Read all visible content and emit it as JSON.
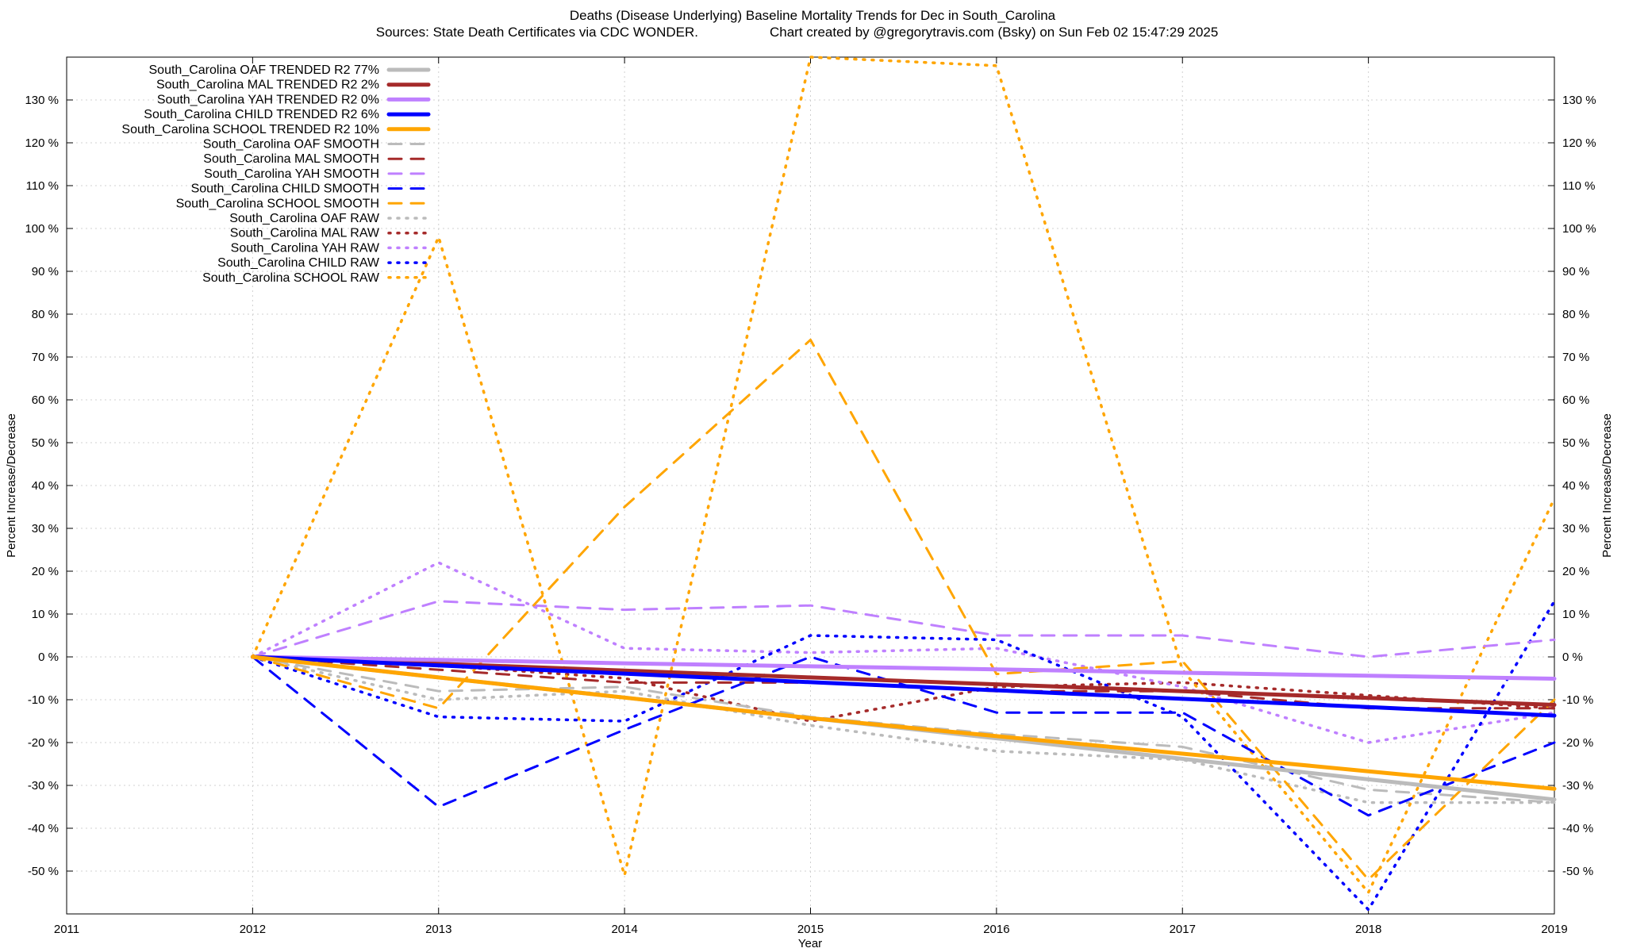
{
  "chart_data": {
    "type": "line",
    "title": "Deaths (Disease Underlying)  Baseline Mortality Trends for Dec in South_Carolina",
    "subtitle_left": "Sources: State Death Certificates via CDC WONDER.",
    "subtitle_right": "Chart created by @gregorytravis.com (Bsky) on Sun Feb 02 15:47:29 2025",
    "xlabel": "Year",
    "ylabel_left": "Percent Increase/Decrease",
    "ylabel_right": "Percent Increase/Decrease",
    "xlim": [
      2011,
      2019
    ],
    "ylim": [
      -60,
      140
    ],
    "x_ticks": [
      "2011",
      "2012",
      "2013",
      "2014",
      "2015",
      "2016",
      "2017",
      "2018",
      "2019"
    ],
    "y_ticks": [
      "130 %",
      "120 %",
      "110 %",
      "100 %",
      "90 %",
      "80 %",
      "70 %",
      "60 %",
      "50 %",
      "40 %",
      "30 %",
      "20 %",
      "10 %",
      "0 %",
      "-10 %",
      "-20 %",
      "-30 %",
      "-40 %",
      "-50 %"
    ],
    "y_tick_values": [
      130,
      120,
      110,
      100,
      90,
      80,
      70,
      60,
      50,
      40,
      30,
      20,
      10,
      0,
      -10,
      -20,
      -30,
      -40,
      -50
    ],
    "grid": true,
    "legend_position": "top-left",
    "x": [
      2012,
      2013,
      2014,
      2015,
      2016,
      2017,
      2018,
      2019
    ],
    "series": [
      {
        "name": "South_Carolina OAF TRENDED R2  77%",
        "color": "#bbbbbb",
        "style": "solid",
        "values": [
          0,
          -4.8,
          -9.5,
          -14.3,
          -19.0,
          -23.8,
          -28.6,
          -33.3
        ]
      },
      {
        "name": "South_Carolina MAL TRENDED R2   2%",
        "color": "#a52a2a",
        "style": "solid",
        "values": [
          0,
          -1.6,
          -3.2,
          -4.8,
          -6.4,
          -8.0,
          -9.6,
          -11.2
        ]
      },
      {
        "name": "South_Carolina YAH TRENDED R2   0%",
        "color": "#bf80ff",
        "style": "solid",
        "values": [
          0,
          -0.7,
          -1.5,
          -2.2,
          -2.9,
          -3.7,
          -4.4,
          -5.1
        ]
      },
      {
        "name": "South_Carolina CHILD TRENDED R2   6%",
        "color": "#0000ff",
        "style": "solid",
        "values": [
          0,
          -2.0,
          -3.9,
          -5.9,
          -7.8,
          -9.8,
          -11.7,
          -13.7
        ]
      },
      {
        "name": "South_Carolina SCHOOL TRENDED R2  10%",
        "color": "#ffa500",
        "style": "solid",
        "values": [
          0,
          -4.8,
          -9.5,
          -14.3,
          -18.5,
          -22.6,
          -26.7,
          -30.8
        ]
      },
      {
        "name": "South_Carolina OAF SMOOTH",
        "color": "#bbbbbb",
        "style": "dashed",
        "values": [
          0,
          -8,
          -7,
          -14,
          -18,
          -21,
          -31,
          -34
        ]
      },
      {
        "name": "South_Carolina MAL SMOOTH",
        "color": "#a52a2a",
        "style": "dashed",
        "values": [
          0,
          -3,
          -6,
          -6,
          -8,
          -8,
          -12,
          -12
        ]
      },
      {
        "name": "South_Carolina YAH SMOOTH",
        "color": "#bf80ff",
        "style": "dashed",
        "values": [
          0,
          13,
          11,
          12,
          5,
          5,
          0,
          4
        ]
      },
      {
        "name": "South_Carolina CHILD SMOOTH",
        "color": "#0000ff",
        "style": "dashed",
        "values": [
          0,
          -35,
          -17,
          0,
          -13,
          -13,
          -37,
          -20
        ]
      },
      {
        "name": "South_Carolina SCHOOL SMOOTH",
        "color": "#ffa500",
        "style": "dashed",
        "values": [
          0,
          -12,
          35,
          74,
          -4,
          -1,
          -52,
          -10
        ]
      },
      {
        "name": "South_Carolina OAF RAW",
        "color": "#bbbbbb",
        "style": "dotted",
        "values": [
          0,
          -10,
          -8,
          -16,
          -22,
          -24,
          -34,
          -34
        ]
      },
      {
        "name": "South_Carolina MAL RAW",
        "color": "#a52a2a",
        "style": "dotted",
        "values": [
          0,
          -2,
          -5,
          -15,
          -7,
          -6,
          -9,
          -12
        ]
      },
      {
        "name": "South_Carolina YAH RAW",
        "color": "#bf80ff",
        "style": "dotted",
        "values": [
          0,
          22,
          2,
          1,
          2,
          -7,
          -20,
          -13
        ]
      },
      {
        "name": "South_Carolina CHILD RAW",
        "color": "#0000ff",
        "style": "dotted",
        "values": [
          0,
          -14,
          -15,
          5,
          4,
          -14,
          -59,
          13
        ]
      },
      {
        "name": "South_Carolina SCHOOL RAW",
        "color": "#ffa500",
        "style": "dotted",
        "values": [
          0,
          98,
          -51,
          140,
          138,
          -3,
          -55,
          37
        ]
      }
    ]
  }
}
